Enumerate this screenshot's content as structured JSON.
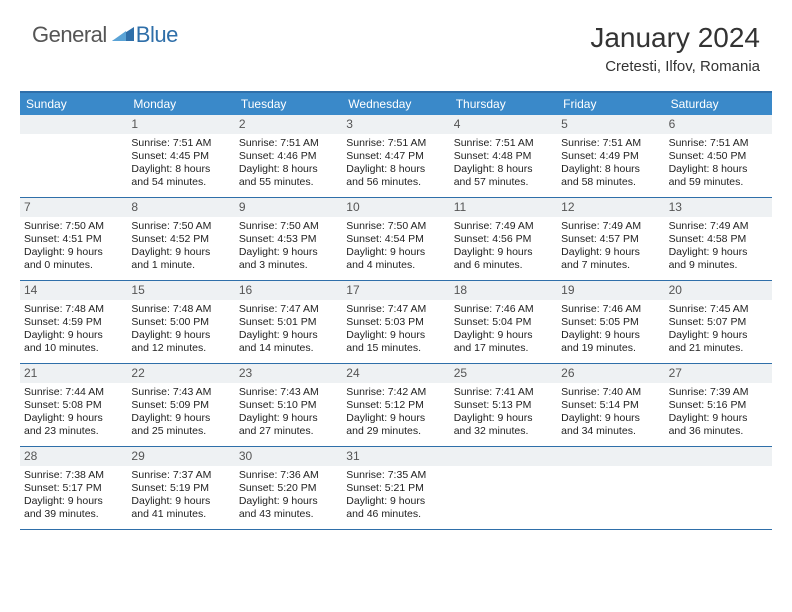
{
  "logo": {
    "text1": "General",
    "text2": "Blue"
  },
  "title": "January 2024",
  "location": "Cretesti, Ilfov, Romania",
  "colors": {
    "header_bg": "#3a89c9",
    "border": "#2f6fa9",
    "daynum_bg": "#eef1f3",
    "text": "#333333",
    "logo_blue": "#2f6fa9"
  },
  "fonts": {
    "title_pt": 28,
    "location_pt": 15,
    "header_pt": 12,
    "body_pt": 10.5
  },
  "day_names": [
    "Sunday",
    "Monday",
    "Tuesday",
    "Wednesday",
    "Thursday",
    "Friday",
    "Saturday"
  ],
  "weeks": [
    [
      {
        "n": "",
        "sr": "",
        "ss": "",
        "dl": ""
      },
      {
        "n": "1",
        "sr": "Sunrise: 7:51 AM",
        "ss": "Sunset: 4:45 PM",
        "dl": "Daylight: 8 hours",
        "dl2": "and 54 minutes."
      },
      {
        "n": "2",
        "sr": "Sunrise: 7:51 AM",
        "ss": "Sunset: 4:46 PM",
        "dl": "Daylight: 8 hours",
        "dl2": "and 55 minutes."
      },
      {
        "n": "3",
        "sr": "Sunrise: 7:51 AM",
        "ss": "Sunset: 4:47 PM",
        "dl": "Daylight: 8 hours",
        "dl2": "and 56 minutes."
      },
      {
        "n": "4",
        "sr": "Sunrise: 7:51 AM",
        "ss": "Sunset: 4:48 PM",
        "dl": "Daylight: 8 hours",
        "dl2": "and 57 minutes."
      },
      {
        "n": "5",
        "sr": "Sunrise: 7:51 AM",
        "ss": "Sunset: 4:49 PM",
        "dl": "Daylight: 8 hours",
        "dl2": "and 58 minutes."
      },
      {
        "n": "6",
        "sr": "Sunrise: 7:51 AM",
        "ss": "Sunset: 4:50 PM",
        "dl": "Daylight: 8 hours",
        "dl2": "and 59 minutes."
      }
    ],
    [
      {
        "n": "7",
        "sr": "Sunrise: 7:50 AM",
        "ss": "Sunset: 4:51 PM",
        "dl": "Daylight: 9 hours",
        "dl2": "and 0 minutes."
      },
      {
        "n": "8",
        "sr": "Sunrise: 7:50 AM",
        "ss": "Sunset: 4:52 PM",
        "dl": "Daylight: 9 hours",
        "dl2": "and 1 minute."
      },
      {
        "n": "9",
        "sr": "Sunrise: 7:50 AM",
        "ss": "Sunset: 4:53 PM",
        "dl": "Daylight: 9 hours",
        "dl2": "and 3 minutes."
      },
      {
        "n": "10",
        "sr": "Sunrise: 7:50 AM",
        "ss": "Sunset: 4:54 PM",
        "dl": "Daylight: 9 hours",
        "dl2": "and 4 minutes."
      },
      {
        "n": "11",
        "sr": "Sunrise: 7:49 AM",
        "ss": "Sunset: 4:56 PM",
        "dl": "Daylight: 9 hours",
        "dl2": "and 6 minutes."
      },
      {
        "n": "12",
        "sr": "Sunrise: 7:49 AM",
        "ss": "Sunset: 4:57 PM",
        "dl": "Daylight: 9 hours",
        "dl2": "and 7 minutes."
      },
      {
        "n": "13",
        "sr": "Sunrise: 7:49 AM",
        "ss": "Sunset: 4:58 PM",
        "dl": "Daylight: 9 hours",
        "dl2": "and 9 minutes."
      }
    ],
    [
      {
        "n": "14",
        "sr": "Sunrise: 7:48 AM",
        "ss": "Sunset: 4:59 PM",
        "dl": "Daylight: 9 hours",
        "dl2": "and 10 minutes."
      },
      {
        "n": "15",
        "sr": "Sunrise: 7:48 AM",
        "ss": "Sunset: 5:00 PM",
        "dl": "Daylight: 9 hours",
        "dl2": "and 12 minutes."
      },
      {
        "n": "16",
        "sr": "Sunrise: 7:47 AM",
        "ss": "Sunset: 5:01 PM",
        "dl": "Daylight: 9 hours",
        "dl2": "and 14 minutes."
      },
      {
        "n": "17",
        "sr": "Sunrise: 7:47 AM",
        "ss": "Sunset: 5:03 PM",
        "dl": "Daylight: 9 hours",
        "dl2": "and 15 minutes."
      },
      {
        "n": "18",
        "sr": "Sunrise: 7:46 AM",
        "ss": "Sunset: 5:04 PM",
        "dl": "Daylight: 9 hours",
        "dl2": "and 17 minutes."
      },
      {
        "n": "19",
        "sr": "Sunrise: 7:46 AM",
        "ss": "Sunset: 5:05 PM",
        "dl": "Daylight: 9 hours",
        "dl2": "and 19 minutes."
      },
      {
        "n": "20",
        "sr": "Sunrise: 7:45 AM",
        "ss": "Sunset: 5:07 PM",
        "dl": "Daylight: 9 hours",
        "dl2": "and 21 minutes."
      }
    ],
    [
      {
        "n": "21",
        "sr": "Sunrise: 7:44 AM",
        "ss": "Sunset: 5:08 PM",
        "dl": "Daylight: 9 hours",
        "dl2": "and 23 minutes."
      },
      {
        "n": "22",
        "sr": "Sunrise: 7:43 AM",
        "ss": "Sunset: 5:09 PM",
        "dl": "Daylight: 9 hours",
        "dl2": "and 25 minutes."
      },
      {
        "n": "23",
        "sr": "Sunrise: 7:43 AM",
        "ss": "Sunset: 5:10 PM",
        "dl": "Daylight: 9 hours",
        "dl2": "and 27 minutes."
      },
      {
        "n": "24",
        "sr": "Sunrise: 7:42 AM",
        "ss": "Sunset: 5:12 PM",
        "dl": "Daylight: 9 hours",
        "dl2": "and 29 minutes."
      },
      {
        "n": "25",
        "sr": "Sunrise: 7:41 AM",
        "ss": "Sunset: 5:13 PM",
        "dl": "Daylight: 9 hours",
        "dl2": "and 32 minutes."
      },
      {
        "n": "26",
        "sr": "Sunrise: 7:40 AM",
        "ss": "Sunset: 5:14 PM",
        "dl": "Daylight: 9 hours",
        "dl2": "and 34 minutes."
      },
      {
        "n": "27",
        "sr": "Sunrise: 7:39 AM",
        "ss": "Sunset: 5:16 PM",
        "dl": "Daylight: 9 hours",
        "dl2": "and 36 minutes."
      }
    ],
    [
      {
        "n": "28",
        "sr": "Sunrise: 7:38 AM",
        "ss": "Sunset: 5:17 PM",
        "dl": "Daylight: 9 hours",
        "dl2": "and 39 minutes."
      },
      {
        "n": "29",
        "sr": "Sunrise: 7:37 AM",
        "ss": "Sunset: 5:19 PM",
        "dl": "Daylight: 9 hours",
        "dl2": "and 41 minutes."
      },
      {
        "n": "30",
        "sr": "Sunrise: 7:36 AM",
        "ss": "Sunset: 5:20 PM",
        "dl": "Daylight: 9 hours",
        "dl2": "and 43 minutes."
      },
      {
        "n": "31",
        "sr": "Sunrise: 7:35 AM",
        "ss": "Sunset: 5:21 PM",
        "dl": "Daylight: 9 hours",
        "dl2": "and 46 minutes."
      },
      {
        "n": "",
        "sr": "",
        "ss": "",
        "dl": ""
      },
      {
        "n": "",
        "sr": "",
        "ss": "",
        "dl": ""
      },
      {
        "n": "",
        "sr": "",
        "ss": "",
        "dl": ""
      }
    ]
  ]
}
